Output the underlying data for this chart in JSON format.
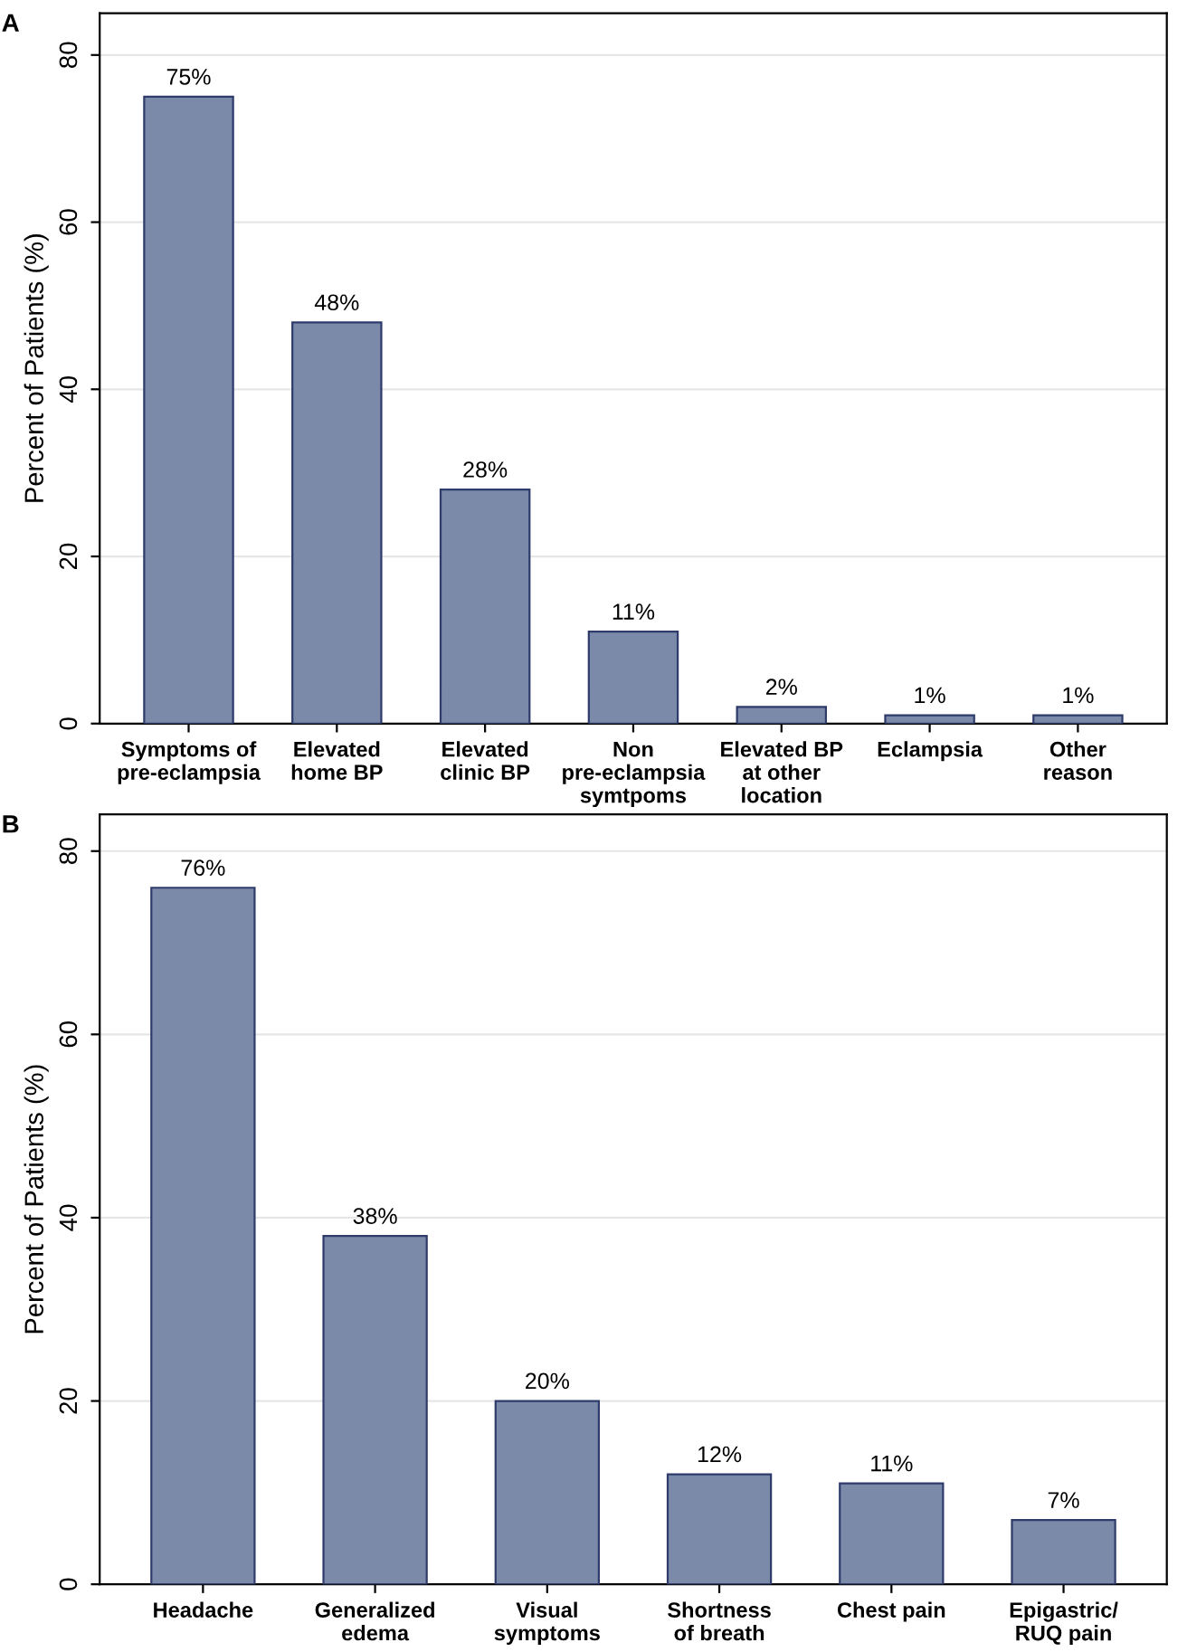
{
  "chart_data": [
    {
      "type": "bar",
      "title": "A",
      "ylabel": "Percent of Patients (%)",
      "categories": [
        "Symptoms of\npre-eclampsia",
        "Elevated\nhome BP",
        "Elevated\nclinic BP",
        "Non\npre-eclampsia\nsymtpoms",
        "Elevated BP\nat other\nlocation",
        "Eclampsia",
        "Other\nreason"
      ],
      "values": [
        75,
        48,
        28,
        11,
        2,
        1,
        1
      ],
      "value_labels": [
        "75%",
        "48%",
        "28%",
        "11%",
        "2%",
        "1%",
        "1%"
      ],
      "color": "#7b8aa9",
      "ylim": [
        0,
        85
      ],
      "yticks": [
        0,
        20,
        40,
        60,
        80
      ],
      "grid": "y",
      "legend": false
    },
    {
      "type": "bar",
      "title": "B",
      "ylabel": "Percent of Patients (%)",
      "categories": [
        "Headache",
        "Generalized\nedema",
        "Visual\nsymptoms",
        "Shortness\nof breath",
        "Chest pain",
        "Epigastric/\nRUQ pain"
      ],
      "values": [
        76,
        38,
        20,
        12,
        11,
        7
      ],
      "value_labels": [
        "76%",
        "38%",
        "20%",
        "12%",
        "11%",
        "7%"
      ],
      "color": "#7b8aa9",
      "ylim": [
        0,
        84
      ],
      "yticks": [
        0,
        20,
        40,
        60,
        80
      ],
      "grid": "y",
      "legend": false
    }
  ]
}
